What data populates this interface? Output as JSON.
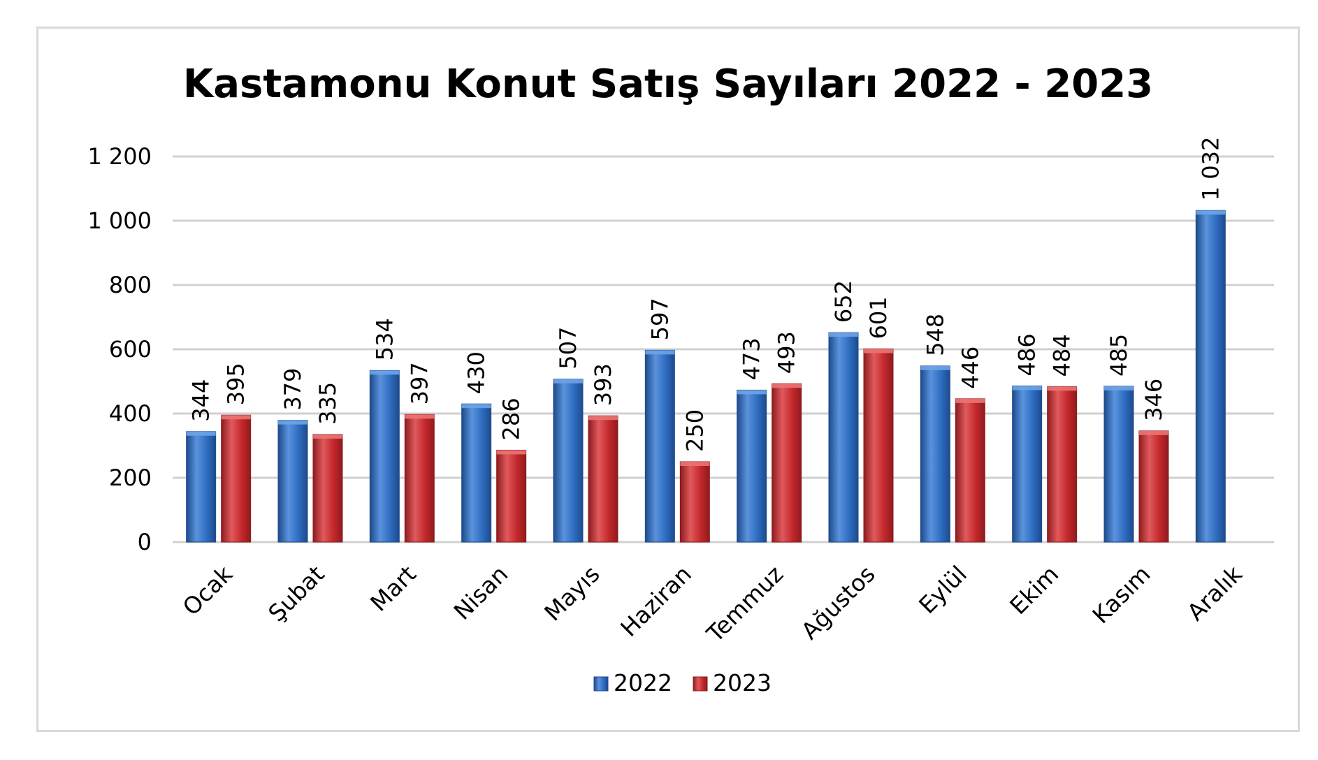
{
  "chart_data": {
    "type": "bar",
    "title": "Kastamonu Konut Satış Sayıları 2022 - 2023",
    "categories": [
      "Ocak",
      "Şubat",
      "Mart",
      "Nisan",
      "Mayıs",
      "Haziran",
      "Temmuz",
      "Ağustos",
      "Eylül",
      "Ekim",
      "Kasım",
      "Aralık"
    ],
    "series": [
      {
        "name": "2022",
        "color": "#2e6cc0",
        "values": [
          344,
          379,
          534,
          430,
          507,
          597,
          473,
          652,
          548,
          486,
          485,
          1032
        ],
        "labels": [
          "344",
          "379",
          "534",
          "430",
          "507",
          "597",
          "473",
          "652",
          "548",
          "486",
          "485",
          "1 032"
        ]
      },
      {
        "name": "2023",
        "color": "#c3272b",
        "values": [
          395,
          335,
          397,
          286,
          393,
          250,
          493,
          601,
          446,
          484,
          346,
          null
        ],
        "labels": [
          "395",
          "335",
          "397",
          "286",
          "393",
          "250",
          "493",
          "601",
          "446",
          "484",
          "346",
          null
        ]
      }
    ],
    "ylim": [
      0,
      1200
    ],
    "yticks": [
      0,
      200,
      400,
      600,
      800,
      1000,
      1200
    ],
    "ytick_labels": [
      "0",
      "200",
      "400",
      "600",
      "800",
      "1 000",
      "1 200"
    ],
    "grid": true,
    "legend_position": "bottom",
    "xlabel": "",
    "ylabel": ""
  }
}
